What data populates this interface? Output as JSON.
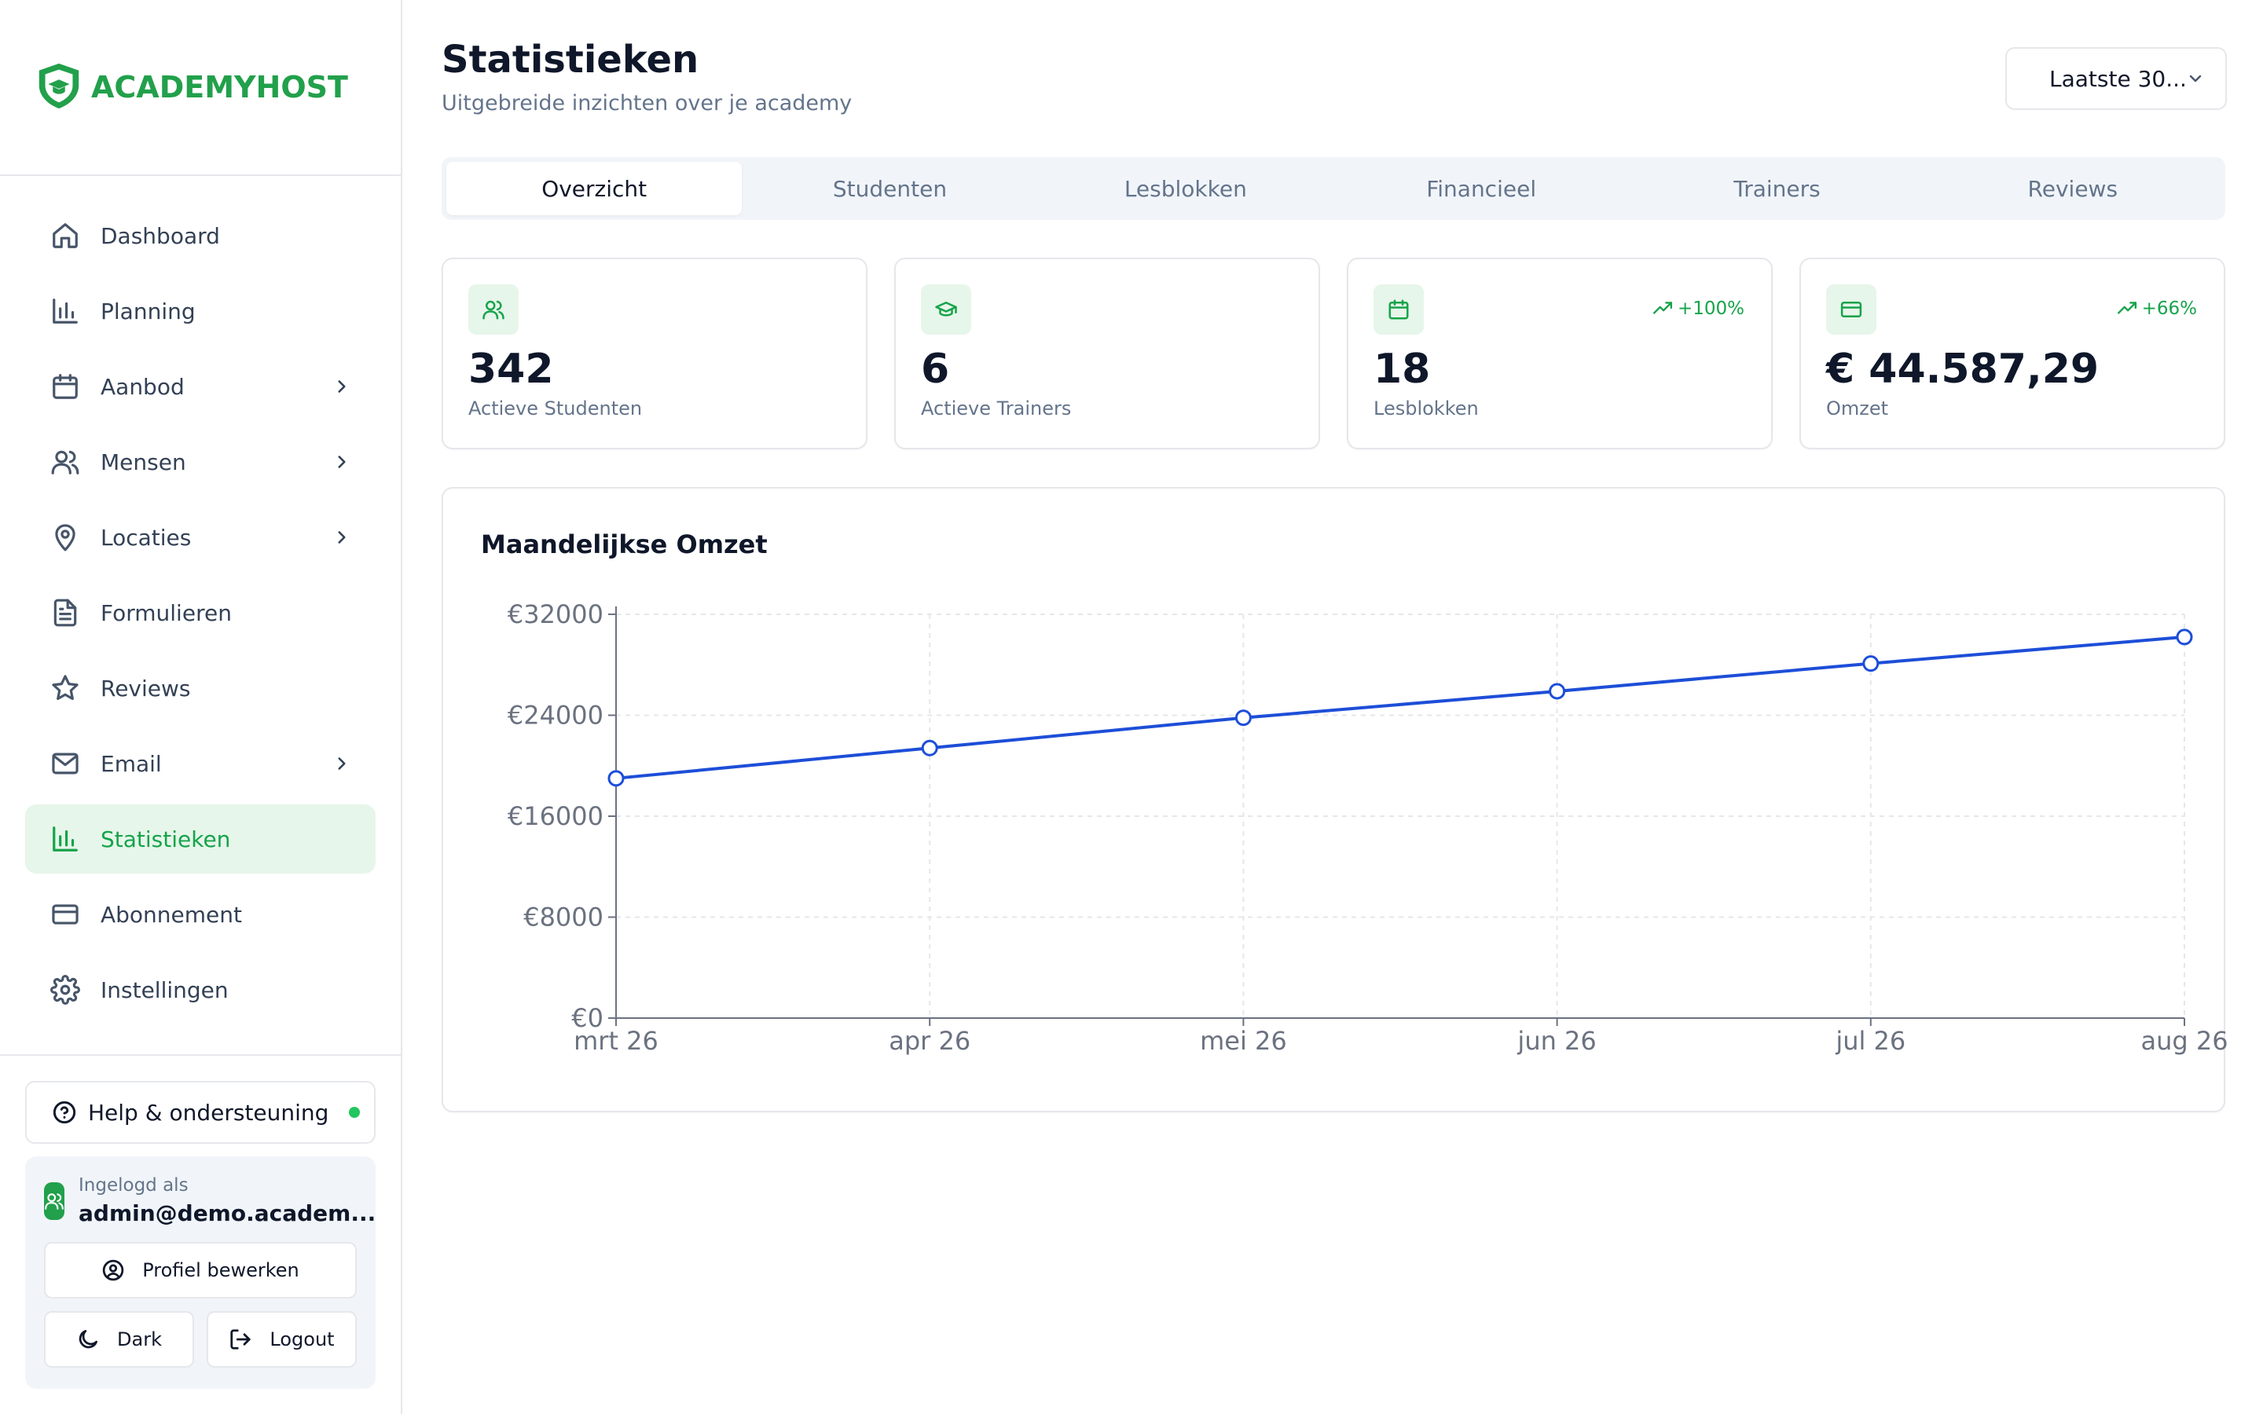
{
  "brand": {
    "name": "ACADEMYHOST",
    "color": "#22a04b"
  },
  "sidebar": {
    "items": [
      {
        "label": "Dashboard",
        "icon": "home-icon",
        "active": false,
        "submenu": false
      },
      {
        "label": "Planning",
        "icon": "bar-chart-icon",
        "active": false,
        "submenu": false
      },
      {
        "label": "Aanbod",
        "icon": "calendar-icon",
        "active": false,
        "submenu": true
      },
      {
        "label": "Mensen",
        "icon": "users-icon",
        "active": false,
        "submenu": true
      },
      {
        "label": "Locaties",
        "icon": "map-pin-icon",
        "active": false,
        "submenu": true
      },
      {
        "label": "Formulieren",
        "icon": "file-text-icon",
        "active": false,
        "submenu": false
      },
      {
        "label": "Reviews",
        "icon": "star-icon",
        "active": false,
        "submenu": false
      },
      {
        "label": "Email",
        "icon": "mail-icon",
        "active": false,
        "submenu": true
      },
      {
        "label": "Statistieken",
        "icon": "bar-chart-icon",
        "active": true,
        "submenu": false
      },
      {
        "label": "Abonnement",
        "icon": "credit-card-icon",
        "active": false,
        "submenu": false
      },
      {
        "label": "Instellingen",
        "icon": "gear-icon",
        "active": false,
        "submenu": false
      }
    ],
    "help": {
      "label": "Help & ondersteuning",
      "status_color": "#22c55e"
    },
    "user": {
      "logged_in_label": "Ingelogd als",
      "email": "admin@demo.academ...",
      "edit_profile": "Profiel bewerken",
      "dark": "Dark",
      "logout": "Logout"
    }
  },
  "header": {
    "title": "Statistieken",
    "subtitle": "Uitgebreide inzichten over je academy",
    "period": "Laatste 30..."
  },
  "tabs": [
    {
      "label": "Overzicht",
      "active": true
    },
    {
      "label": "Studenten",
      "active": false
    },
    {
      "label": "Lesblokken",
      "active": false
    },
    {
      "label": "Financieel",
      "active": false
    },
    {
      "label": "Trainers",
      "active": false
    },
    {
      "label": "Reviews",
      "active": false
    }
  ],
  "cards": [
    {
      "icon": "users-icon",
      "value": "342",
      "label": "Actieve Studenten",
      "trend": ""
    },
    {
      "icon": "graduation-cap-icon",
      "value": "6",
      "label": "Actieve Trainers",
      "trend": ""
    },
    {
      "icon": "calendar-icon",
      "value": "18",
      "label": "Lesblokken",
      "trend": "+100%"
    },
    {
      "icon": "credit-card-icon",
      "value": "€ 44.587,29",
      "label": "Omzet",
      "trend": "+66%"
    }
  ],
  "chart_data": {
    "type": "line",
    "title": "Maandelijkse Omzet",
    "categories": [
      "mrt 26",
      "apr 26",
      "mei 26",
      "jun 26",
      "jul 26",
      "aug 26"
    ],
    "series": [
      {
        "values": [
          19000,
          21400,
          23800,
          25900,
          28100,
          30200
        ],
        "color": "#1d4ed8"
      }
    ],
    "yticks": [
      "€0",
      "€8000",
      "€16000",
      "€24000",
      "€32000"
    ],
    "ylim": [
      0,
      32000
    ],
    "grid": true,
    "xlabel": "",
    "ylabel": ""
  },
  "colors": {
    "accent": "#16a34a",
    "accent_bg": "#e6f6ea",
    "line": "#1d4ed8"
  }
}
